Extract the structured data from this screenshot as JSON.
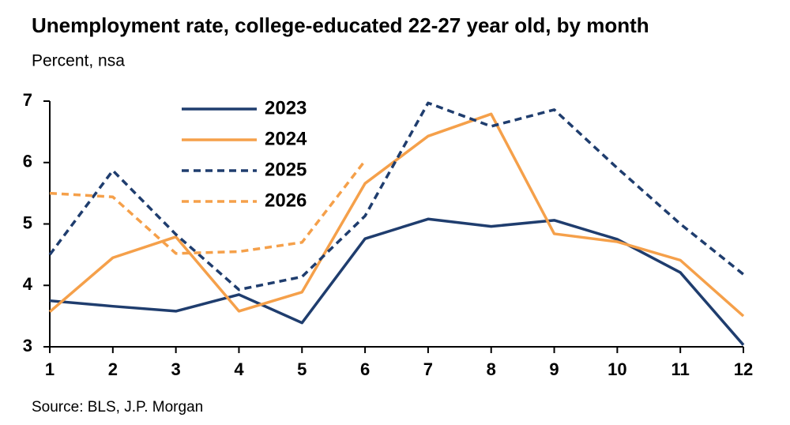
{
  "chart_data": {
    "type": "line",
    "title": "Unemployment rate, college-educated 22-27 year old, by month",
    "subtitle": "Percent, nsa",
    "source": "Source: BLS, J.P. Morgan",
    "x": [
      1,
      2,
      3,
      4,
      5,
      6,
      7,
      8,
      9,
      10,
      11,
      12
    ],
    "xlim": [
      1,
      12
    ],
    "xticks": [
      1,
      2,
      3,
      4,
      5,
      6,
      7,
      8,
      9,
      10,
      11,
      12
    ],
    "ylim": [
      3,
      7
    ],
    "yticks": [
      3,
      4,
      5,
      6,
      7
    ],
    "legend": "top-left",
    "series": [
      {
        "name": "2023",
        "color": "#1f3d6e",
        "dashed": false,
        "values": [
          3.75,
          3.66,
          3.58,
          3.85,
          3.39,
          4.76,
          5.08,
          4.96,
          5.06,
          4.75,
          4.21,
          3.03
        ]
      },
      {
        "name": "2024",
        "color": "#f5a04a",
        "dashed": false,
        "values": [
          3.57,
          4.45,
          4.79,
          3.58,
          3.89,
          5.66,
          6.43,
          6.79,
          4.84,
          4.71,
          4.41,
          3.5
        ]
      },
      {
        "name": "2025",
        "color": "#1f3d6e",
        "dashed": true,
        "values": [
          4.5,
          5.87,
          4.83,
          3.93,
          4.14,
          5.13,
          6.97,
          6.59,
          6.86,
          5.91,
          5.0,
          4.18
        ]
      },
      {
        "name": "2026",
        "color": "#f5a04a",
        "dashed": true,
        "values": [
          5.5,
          5.44,
          4.52,
          4.55,
          4.7,
          6.03,
          null,
          null,
          null,
          null,
          null,
          null
        ]
      }
    ]
  }
}
